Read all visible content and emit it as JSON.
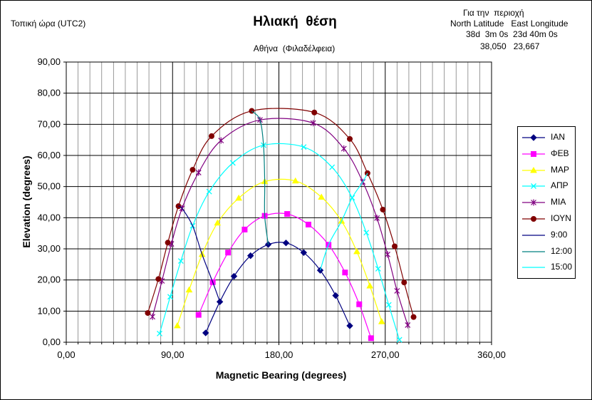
{
  "header": {
    "local_time_label": "Τοπική ώρα (UTC2)",
    "region_line1": "Για την  περιοχή",
    "region_line2": "North Latitude   East Longitude",
    "region_line3": "38d  3m 0s  23d 40m 0s",
    "region_line4": "38,050   23,667"
  },
  "chart_data": {
    "type": "scatter",
    "title": "Ηλιακή  θέση",
    "subtitle": "Αθήνα  (Φιλαδέλφεια)",
    "xlabel": "Magnetic Bearing (degrees)",
    "ylabel": "Elevation (degrees)",
    "xlim": [
      0,
      360
    ],
    "ylim": [
      0,
      90
    ],
    "x_ticks": [
      "0,00",
      "90,00",
      "180,00",
      "270,00",
      "360,00"
    ],
    "y_ticks": [
      "0,00",
      "10,00",
      "20,00",
      "30,00",
      "40,00",
      "50,00",
      "60,00",
      "70,00",
      "80,00",
      "90,00"
    ],
    "grid": true,
    "legend_position": "right",
    "series": [
      {
        "name": "ΙΑΝ",
        "color": "#000080",
        "marker": "diamond",
        "points": [
          [
            118,
            3
          ],
          [
            130,
            13
          ],
          [
            142,
            21.2
          ],
          [
            156,
            27.8
          ],
          [
            171,
            31.4
          ],
          [
            186,
            31.9
          ],
          [
            201,
            28.8
          ],
          [
            215,
            23.1
          ],
          [
            228,
            15
          ],
          [
            240,
            5.3
          ]
        ]
      },
      {
        "name": "ΦΕΒ",
        "color": "#ff00ff",
        "marker": "square",
        "points": [
          [
            112,
            8.8
          ],
          [
            124,
            19.3
          ],
          [
            137,
            28.8
          ],
          [
            151,
            36.2
          ],
          [
            168,
            40.6
          ],
          [
            187,
            41.2
          ],
          [
            205,
            37.8
          ],
          [
            222,
            31.3
          ],
          [
            236,
            22.4
          ],
          [
            248,
            12.2
          ],
          [
            258,
            1.3
          ]
        ]
      },
      {
        "name": "ΜΑΡ",
        "color": "#ffff00",
        "marker": "triangle",
        "points": [
          [
            94,
            5.3
          ],
          [
            104,
            16.8
          ],
          [
            115,
            28.2
          ],
          [
            128,
            38.3
          ],
          [
            146,
            46.3
          ],
          [
            168,
            51.6
          ],
          [
            194,
            51.8
          ],
          [
            216,
            46.6
          ],
          [
            233,
            38.9
          ],
          [
            246,
            29.1
          ],
          [
            257,
            18.1
          ],
          [
            267,
            6.6
          ]
        ]
      },
      {
        "name": "ΑΠΡ",
        "color": "#00ffff",
        "marker": "x",
        "points": [
          [
            79,
            2.8
          ],
          [
            88,
            14.6
          ],
          [
            97,
            26.1
          ],
          [
            107,
            37.4
          ],
          [
            121,
            48.4
          ],
          [
            141,
            57.6
          ],
          [
            167,
            63.3
          ],
          [
            201,
            62.7
          ],
          [
            225,
            56.2
          ],
          [
            242,
            46.4
          ],
          [
            254,
            35.2
          ],
          [
            264,
            23.6
          ],
          [
            273,
            12.0
          ],
          [
            282,
            0.8
          ]
        ]
      },
      {
        "name": "ΜΙΑ",
        "color": "#800080",
        "marker": "star",
        "points": [
          [
            73,
            8.2
          ],
          [
            81,
            19.7
          ],
          [
            89,
            31.6
          ],
          [
            98,
            43.0
          ],
          [
            112,
            54.5
          ],
          [
            131,
            64.8
          ],
          [
            164,
            71.4
          ],
          [
            209,
            70.4
          ],
          [
            235,
            62.2
          ],
          [
            251,
            51.5
          ],
          [
            263,
            39.9
          ],
          [
            272,
            28.2
          ],
          [
            280,
            16.5
          ],
          [
            289,
            5.5
          ]
        ]
      },
      {
        "name": "ΙΟΥΝ",
        "color": "#800000",
        "marker": "circle",
        "points": [
          [
            69,
            9.4
          ],
          [
            78,
            20.3
          ],
          [
            86,
            32.0
          ],
          [
            95,
            43.7
          ],
          [
            107,
            55.4
          ],
          [
            123,
            66.2
          ],
          [
            157,
            74.3
          ],
          [
            210,
            73.8
          ],
          [
            240,
            65.3
          ],
          [
            255,
            54.3
          ],
          [
            268,
            42.6
          ],
          [
            278,
            30.8
          ],
          [
            286,
            19.2
          ],
          [
            294,
            8.1
          ]
        ]
      },
      {
        "name": "9:00",
        "color": "#000080",
        "marker": "none",
        "points": [
          [
            130,
            13
          ],
          [
            124,
            19.3
          ],
          [
            115,
            28.2
          ],
          [
            107,
            37.4
          ],
          [
            98,
            43.0
          ],
          [
            95,
            43.7
          ]
        ]
      },
      {
        "name": "12:00",
        "color": "#008080",
        "marker": "none",
        "points": [
          [
            171,
            31.4
          ],
          [
            168,
            40.6
          ],
          [
            168,
            51.6
          ],
          [
            167,
            63.3
          ],
          [
            164,
            71.4
          ],
          [
            157,
            74.3
          ]
        ]
      },
      {
        "name": "15:00",
        "color": "#00ffff",
        "marker": "none",
        "points": [
          [
            215,
            23.1
          ],
          [
            222,
            31.3
          ],
          [
            233,
            38.9
          ],
          [
            242,
            46.4
          ],
          [
            251,
            51.5
          ],
          [
            255,
            54.3
          ]
        ]
      }
    ]
  }
}
